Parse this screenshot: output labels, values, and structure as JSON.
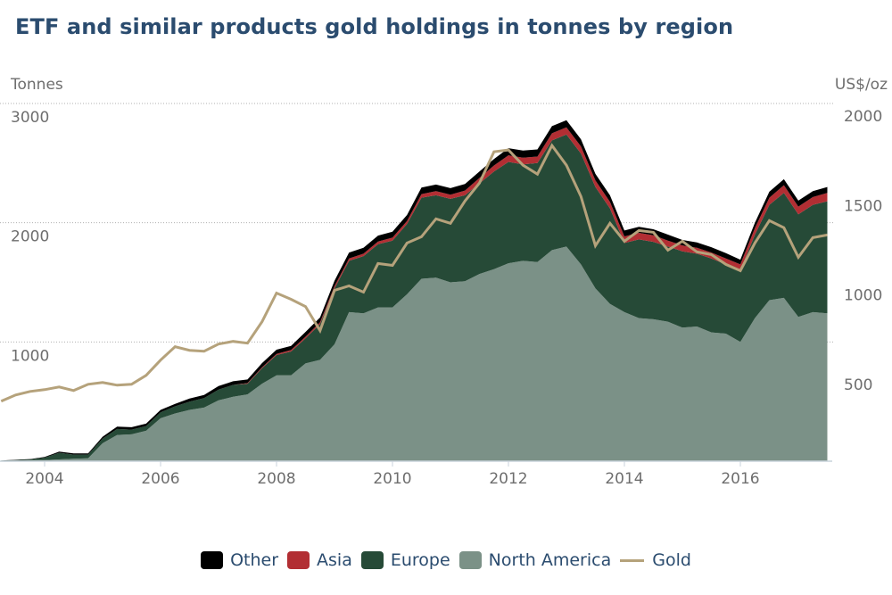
{
  "chart_data": {
    "type": "area",
    "stacked": true,
    "title": "ETF and similar products gold holdings in tonnes by region",
    "ylabel_left": "Tonnes",
    "ylabel_right": "US$/oz",
    "ylim_left": [
      0,
      3000
    ],
    "ylim_right": [
      0,
      2000
    ],
    "yticks_left": [
      "1000",
      "2000",
      "3000"
    ],
    "yticks_right": [
      "500",
      "1000",
      "1500",
      "2000"
    ],
    "xlim": [
      2003.2,
      2017.6
    ],
    "xticks": [
      "2004",
      "2006",
      "2008",
      "2010",
      "2012",
      "2014",
      "2016"
    ],
    "grid": true,
    "legend_position": "bottom",
    "x": [
      2003.25,
      2003.5,
      2003.75,
      2004.0,
      2004.25,
      2004.5,
      2004.75,
      2005.0,
      2005.25,
      2005.5,
      2005.75,
      2006.0,
      2006.25,
      2006.5,
      2006.75,
      2007.0,
      2007.25,
      2007.5,
      2007.75,
      2008.0,
      2008.25,
      2008.5,
      2008.75,
      2009.0,
      2009.25,
      2009.5,
      2009.75,
      2010.0,
      2010.25,
      2010.5,
      2010.75,
      2011.0,
      2011.25,
      2011.5,
      2011.75,
      2012.0,
      2012.25,
      2012.5,
      2012.75,
      2013.0,
      2013.25,
      2013.5,
      2013.75,
      2014.0,
      2014.25,
      2014.5,
      2014.75,
      2015.0,
      2015.25,
      2015.5,
      2015.75,
      2016.0,
      2016.25,
      2016.5,
      2016.75,
      2017.0,
      2017.25,
      2017.5
    ],
    "series": [
      {
        "name": "North America",
        "axis": "left",
        "color": "#7b9187",
        "values": [
          3,
          5,
          8,
          10,
          15,
          20,
          25,
          150,
          220,
          225,
          255,
          360,
          400,
          430,
          450,
          510,
          540,
          560,
          650,
          720,
          720,
          820,
          850,
          980,
          1250,
          1240,
          1290,
          1290,
          1400,
          1530,
          1540,
          1500,
          1510,
          1570,
          1610,
          1660,
          1680,
          1670,
          1770,
          1800,
          1650,
          1450,
          1320,
          1250,
          1200,
          1190,
          1170,
          1120,
          1130,
          1080,
          1070,
          1000,
          1200,
          1350,
          1370,
          1210,
          1250,
          1240
        ]
      },
      {
        "name": "Europe",
        "axis": "left",
        "color": "#264a37",
        "values": [
          2,
          5,
          7,
          20,
          55,
          35,
          30,
          40,
          50,
          40,
          40,
          50,
          60,
          70,
          80,
          90,
          100,
          90,
          130,
          170,
          200,
          210,
          300,
          470,
          430,
          480,
          530,
          560,
          590,
          680,
          690,
          700,
          720,
          760,
          820,
          850,
          810,
          830,
          920,
          940,
          930,
          850,
          800,
          580,
          660,
          650,
          630,
          640,
          610,
          620,
          580,
          600,
          700,
          800,
          880,
          860,
          900,
          940
        ]
      },
      {
        "name": "Asia",
        "axis": "left",
        "color": "#b22e33",
        "values": [
          0,
          0,
          0,
          0,
          0,
          0,
          0,
          0,
          0,
          0,
          0,
          0,
          0,
          0,
          0,
          0,
          0,
          5,
          8,
          10,
          12,
          14,
          15,
          18,
          20,
          20,
          22,
          25,
          25,
          30,
          35,
          35,
          40,
          45,
          50,
          55,
          55,
          55,
          60,
          60,
          60,
          55,
          55,
          55,
          55,
          55,
          50,
          50,
          50,
          50,
          50,
          50,
          55,
          60,
          65,
          65,
          65,
          70
        ]
      },
      {
        "name": "Other",
        "axis": "left",
        "color": "#000000",
        "values": [
          0,
          2,
          3,
          5,
          10,
          10,
          10,
          15,
          20,
          20,
          20,
          20,
          20,
          25,
          25,
          30,
          30,
          30,
          35,
          35,
          35,
          40,
          40,
          45,
          50,
          50,
          50,
          50,
          50,
          55,
          55,
          55,
          55,
          55,
          55,
          60,
          60,
          60,
          60,
          60,
          60,
          55,
          55,
          50,
          50,
          50,
          50,
          45,
          45,
          45,
          45,
          40,
          45,
          50,
          50,
          50,
          50,
          50
        ]
      },
      {
        "name": "Gold",
        "axis": "right",
        "type": "line",
        "color": "#b5a27b",
        "values": [
          335,
          370,
          390,
          400,
          415,
          395,
          430,
          440,
          425,
          430,
          480,
          565,
          640,
          620,
          615,
          655,
          670,
          660,
          780,
          940,
          905,
          865,
          730,
          955,
          980,
          945,
          1105,
          1095,
          1220,
          1255,
          1355,
          1330,
          1455,
          1555,
          1730,
          1740,
          1655,
          1605,
          1765,
          1655,
          1480,
          1205,
          1330,
          1230,
          1290,
          1280,
          1180,
          1230,
          1170,
          1155,
          1100,
          1065,
          1220,
          1345,
          1305,
          1140,
          1250,
          1265
        ]
      }
    ]
  },
  "legend": [
    {
      "label": "Other",
      "color": "#000000",
      "kind": "box"
    },
    {
      "label": "Asia",
      "color": "#b22e33",
      "kind": "box"
    },
    {
      "label": "Europe",
      "color": "#264a37",
      "kind": "box"
    },
    {
      "label": "North America",
      "color": "#7b9187",
      "kind": "box"
    },
    {
      "label": "Gold",
      "color": "#b5a27b",
      "kind": "line"
    }
  ]
}
